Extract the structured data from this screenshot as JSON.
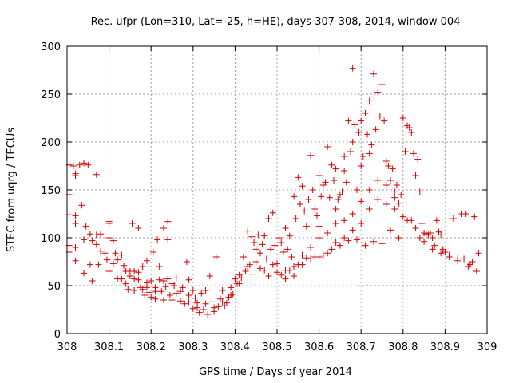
{
  "chart_data": {
    "type": "scatter",
    "title": "Rec. ufpr (Lon=310, Lat=-25, h=HE), days 307-308, 2014, window 004",
    "xlabel": "GPS time / Days of year 2014",
    "ylabel": "STEC from uqrg / TECUs",
    "xlim": [
      308,
      309
    ],
    "ylim": [
      0,
      300
    ],
    "xticks": [
      308,
      308.1,
      308.2,
      308.3,
      308.4,
      308.5,
      308.6,
      308.7,
      308.8,
      308.9,
      309
    ],
    "xtick_labels": [
      "308",
      "308.1",
      "308.2",
      "308.3",
      "308.4",
      "308.5",
      "308.6",
      "308.7",
      "308.8",
      "308.9",
      "309"
    ],
    "yticks": [
      0,
      50,
      100,
      150,
      200,
      250,
      300
    ],
    "ytick_labels": [
      "0",
      "50",
      "100",
      "150",
      "200",
      "250",
      "300"
    ],
    "grid": true,
    "marker": "+",
    "color": "#d00000",
    "series": [
      {
        "points": [
          [
            308.005,
            176
          ],
          [
            308.005,
            145
          ],
          [
            308.005,
            124
          ],
          [
            308.005,
            92
          ],
          [
            308.005,
            85
          ],
          [
            308.015,
            175
          ],
          [
            308.02,
            167
          ],
          [
            308.02,
            115
          ],
          [
            308.02,
            123
          ],
          [
            308.02,
            90
          ],
          [
            308.02,
            76
          ],
          [
            308.03,
            176
          ],
          [
            308.035,
            134
          ],
          [
            308.04,
            178
          ],
          [
            308.04,
            98
          ],
          [
            308.04,
            63
          ],
          [
            308.05,
            176
          ],
          [
            308.055,
            104
          ],
          [
            308.055,
            72
          ],
          [
            308.06,
            55
          ],
          [
            308.07,
            166
          ],
          [
            308.07,
            103
          ],
          [
            308.07,
            93
          ],
          [
            308.075,
            72
          ],
          [
            308.08,
            104
          ],
          [
            308.09,
            84
          ],
          [
            308.095,
            77
          ],
          [
            308.1,
            117
          ],
          [
            308.1,
            115
          ],
          [
            308.1,
            100
          ],
          [
            308.1,
            65
          ],
          [
            308.11,
            97
          ],
          [
            308.115,
            84
          ],
          [
            308.12,
            57
          ],
          [
            308.13,
            82
          ],
          [
            308.135,
            71
          ],
          [
            308.14,
            65
          ],
          [
            308.14,
            52
          ],
          [
            308.145,
            46
          ],
          [
            308.15,
            65
          ],
          [
            308.155,
            115
          ],
          [
            308.16,
            65
          ],
          [
            308.16,
            57
          ],
          [
            308.16,
            45
          ],
          [
            308.17,
            110
          ],
          [
            308.17,
            64
          ],
          [
            308.175,
            48
          ],
          [
            308.18,
            70
          ],
          [
            308.18,
            46
          ],
          [
            308.185,
            40
          ],
          [
            308.19,
            76
          ],
          [
            308.19,
            53
          ],
          [
            308.195,
            43
          ],
          [
            308.2,
            38
          ],
          [
            308.2,
            55
          ],
          [
            308.205,
            85
          ],
          [
            308.21,
            44
          ],
          [
            308.21,
            36
          ],
          [
            308.215,
            98
          ],
          [
            308.22,
            70
          ],
          [
            308.22,
            56
          ],
          [
            308.225,
            44
          ],
          [
            308.23,
            110
          ],
          [
            308.23,
            55
          ],
          [
            308.235,
            49
          ],
          [
            308.24,
            117
          ],
          [
            308.24,
            98
          ],
          [
            308.24,
            57
          ],
          [
            308.245,
            40
          ],
          [
            308.25,
            35
          ],
          [
            308.255,
            50
          ],
          [
            308.26,
            58
          ],
          [
            308.26,
            42
          ],
          [
            308.27,
            34
          ],
          [
            308.275,
            48
          ],
          [
            308.28,
            31
          ],
          [
            308.285,
            75
          ],
          [
            308.29,
            56
          ],
          [
            308.29,
            33
          ],
          [
            308.3,
            45
          ],
          [
            308.3,
            26
          ],
          [
            308.305,
            37
          ],
          [
            308.31,
            32
          ],
          [
            308.315,
            22
          ],
          [
            308.32,
            42
          ],
          [
            308.325,
            25
          ],
          [
            308.33,
            31
          ],
          [
            308.335,
            20
          ],
          [
            308.34,
            60
          ],
          [
            308.345,
            33
          ],
          [
            308.35,
            23
          ],
          [
            308.355,
            80
          ],
          [
            308.36,
            28
          ],
          [
            308.365,
            36
          ],
          [
            308.37,
            45
          ],
          [
            308.375,
            29
          ],
          [
            308.38,
            32
          ],
          [
            308.385,
            38
          ],
          [
            308.39,
            48
          ],
          [
            308.395,
            41
          ],
          [
            308.4,
            57
          ],
          [
            308.405,
            52
          ],
          [
            308.41,
            61
          ],
          [
            308.415,
            58
          ],
          [
            308.42,
            80
          ],
          [
            308.425,
            65
          ],
          [
            308.43,
            107
          ],
          [
            308.435,
            72
          ],
          [
            308.44,
            101
          ],
          [
            308.445,
            95
          ],
          [
            308.45,
            88
          ],
          [
            308.455,
            103
          ],
          [
            308.46,
            84
          ],
          [
            308.465,
            93
          ],
          [
            308.47,
            102
          ],
          [
            308.475,
            78
          ],
          [
            308.48,
            120
          ],
          [
            308.485,
            88
          ],
          [
            308.49,
            126
          ],
          [
            308.495,
            92
          ],
          [
            308.5,
            73
          ],
          [
            308.505,
            100
          ],
          [
            308.51,
            95
          ],
          [
            308.515,
            85
          ],
          [
            308.52,
            110
          ],
          [
            308.525,
            88
          ],
          [
            308.53,
            102
          ],
          [
            308.535,
            80
          ],
          [
            308.54,
            143
          ],
          [
            308.545,
            120
          ],
          [
            308.55,
            163
          ],
          [
            308.555,
            135
          ],
          [
            308.56,
            154
          ],
          [
            308.565,
            128
          ],
          [
            308.57,
            112
          ],
          [
            308.575,
            140
          ],
          [
            308.58,
            186
          ],
          [
            308.585,
            150
          ],
          [
            308.59,
            130
          ],
          [
            308.595,
            123
          ],
          [
            308.6,
            165
          ],
          [
            308.605,
            143
          ],
          [
            308.61,
            155
          ],
          [
            308.615,
            158
          ],
          [
            308.62,
            195
          ],
          [
            308.625,
            142
          ],
          [
            308.63,
            176
          ],
          [
            308.635,
            160
          ],
          [
            308.64,
            130
          ],
          [
            308.645,
            140
          ],
          [
            308.65,
            145
          ],
          [
            308.655,
            148
          ],
          [
            308.66,
            170
          ],
          [
            308.665,
            158
          ],
          [
            308.67,
            222
          ],
          [
            308.675,
            190
          ],
          [
            308.68,
            277
          ],
          [
            308.685,
            218
          ],
          [
            308.69,
            150
          ],
          [
            308.695,
            210
          ],
          [
            308.7,
            222
          ],
          [
            308.705,
            185
          ],
          [
            308.71,
            230
          ],
          [
            308.715,
            208
          ],
          [
            308.72,
            243
          ],
          [
            308.725,
            197
          ],
          [
            308.73,
            271
          ],
          [
            308.735,
            213
          ],
          [
            308.74,
            252
          ],
          [
            308.745,
            227
          ],
          [
            308.75,
            260
          ],
          [
            308.755,
            222
          ],
          [
            308.76,
            180
          ],
          [
            308.765,
            175
          ],
          [
            308.77,
            160
          ],
          [
            308.775,
            172
          ],
          [
            308.78,
            142
          ],
          [
            308.785,
            155
          ],
          [
            308.79,
            136
          ],
          [
            308.795,
            145
          ],
          [
            308.8,
            225
          ],
          [
            308.805,
            190
          ],
          [
            308.81,
            217
          ],
          [
            308.815,
            215
          ],
          [
            308.82,
            210
          ],
          [
            308.825,
            188
          ],
          [
            308.83,
            165
          ],
          [
            308.835,
            182
          ],
          [
            308.84,
            148
          ],
          [
            308.845,
            115
          ],
          [
            308.85,
            105
          ],
          [
            308.855,
            104
          ],
          [
            308.86,
            103
          ],
          [
            308.865,
            105
          ],
          [
            308.87,
            100
          ],
          [
            308.875,
            92
          ],
          [
            308.88,
            118
          ],
          [
            308.885,
            106
          ],
          [
            308.89,
            103
          ],
          [
            308.895,
            88
          ],
          [
            308.9,
            85
          ],
          [
            308.91,
            82
          ],
          [
            308.92,
            120
          ],
          [
            308.93,
            78
          ],
          [
            308.94,
            125
          ],
          [
            308.945,
            78
          ],
          [
            308.95,
            125
          ],
          [
            308.955,
            70
          ],
          [
            308.96,
            72
          ],
          [
            308.965,
            75
          ],
          [
            308.97,
            122
          ],
          [
            308.975,
            65
          ],
          [
            308.98,
            84
          ],
          [
            308.02,
            165
          ],
          [
            308.045,
            112
          ],
          [
            308.06,
            97
          ],
          [
            308.08,
            86
          ],
          [
            308.11,
            73
          ],
          [
            308.12,
            77
          ],
          [
            308.13,
            57
          ],
          [
            308.15,
            60
          ],
          [
            308.17,
            56
          ],
          [
            308.19,
            48
          ],
          [
            308.21,
            48
          ],
          [
            308.23,
            35
          ],
          [
            308.25,
            52
          ],
          [
            308.27,
            44
          ],
          [
            308.29,
            40
          ],
          [
            308.31,
            27
          ],
          [
            308.33,
            45
          ],
          [
            308.35,
            27
          ],
          [
            308.37,
            33
          ],
          [
            308.39,
            40
          ],
          [
            308.41,
            52
          ],
          [
            308.43,
            70
          ],
          [
            308.45,
            75
          ],
          [
            308.47,
            66
          ],
          [
            308.49,
            72
          ],
          [
            308.51,
            61
          ],
          [
            308.53,
            66
          ],
          [
            308.55,
            72
          ],
          [
            308.57,
            79
          ],
          [
            308.59,
            80
          ],
          [
            308.61,
            82
          ],
          [
            308.63,
            88
          ],
          [
            308.65,
            92
          ],
          [
            308.67,
            97
          ],
          [
            308.69,
            98
          ],
          [
            308.71,
            92
          ],
          [
            308.73,
            96
          ],
          [
            308.75,
            94
          ],
          [
            308.77,
            108
          ],
          [
            308.79,
            100
          ],
          [
            308.81,
            118
          ],
          [
            308.83,
            110
          ],
          [
            308.85,
            96
          ],
          [
            308.87,
            88
          ],
          [
            308.89,
            84
          ],
          [
            308.91,
            80
          ],
          [
            308.93,
            76
          ],
          [
            308.52,
            57
          ],
          [
            308.54,
            60
          ],
          [
            308.56,
            72
          ],
          [
            308.58,
            78
          ],
          [
            308.6,
            80
          ],
          [
            308.62,
            84
          ],
          [
            308.64,
            95
          ],
          [
            308.66,
            100
          ],
          [
            308.68,
            108
          ],
          [
            308.7,
            115
          ],
          [
            308.72,
            130
          ],
          [
            308.74,
            140
          ],
          [
            308.76,
            135
          ],
          [
            308.78,
            130
          ],
          [
            308.8,
            122
          ],
          [
            308.82,
            118
          ],
          [
            308.84,
            100
          ],
          [
            308.44,
            62
          ],
          [
            308.46,
            68
          ],
          [
            308.48,
            60
          ],
          [
            308.5,
            64
          ],
          [
            308.52,
            66
          ],
          [
            308.54,
            70
          ],
          [
            308.56,
            82
          ],
          [
            308.58,
            90
          ],
          [
            308.6,
            100
          ],
          [
            308.62,
            105
          ],
          [
            308.64,
            115
          ],
          [
            308.66,
            118
          ],
          [
            308.68,
            125
          ],
          [
            308.7,
            138
          ],
          [
            308.72,
            150
          ],
          [
            308.74,
            160
          ],
          [
            308.76,
            155
          ],
          [
            308.78,
            148
          ],
          [
            308.66,
            185
          ],
          [
            308.68,
            200
          ],
          [
            308.7,
            175
          ],
          [
            308.72,
            188
          ],
          [
            308.64,
            172
          ],
          [
            308.6,
            112
          ]
        ]
      }
    ]
  }
}
